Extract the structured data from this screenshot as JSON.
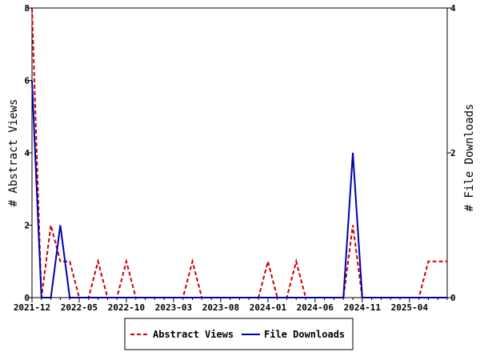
{
  "chart_data": {
    "type": "line",
    "x": [
      "2021-12",
      "2022-01",
      "2022-02",
      "2022-03",
      "2022-04",
      "2022-05",
      "2022-06",
      "2022-07",
      "2022-08",
      "2022-09",
      "2022-10",
      "2022-11",
      "2022-12",
      "2023-01",
      "2023-02",
      "2023-03",
      "2023-04",
      "2023-05",
      "2023-06",
      "2023-07",
      "2023-08",
      "2023-09",
      "2023-10",
      "2023-11",
      "2023-12",
      "2024-01",
      "2024-02",
      "2024-03",
      "2024-04",
      "2024-05",
      "2024-06",
      "2024-07",
      "2024-08",
      "2024-09",
      "2024-10",
      "2024-11",
      "2024-12",
      "2025-01",
      "2025-02",
      "2025-03",
      "2025-04",
      "2025-05",
      "2025-06",
      "2025-07",
      "2025-08"
    ],
    "x_tick_labels": [
      "2021-12",
      "2022-05",
      "2022-10",
      "2023-03",
      "2023-08",
      "2024-01",
      "2024-06",
      "2024-11",
      "2025-04"
    ],
    "series": [
      {
        "name": "Abstract Views",
        "axis": "left",
        "color": "#cc0000",
        "dash": true,
        "values": [
          8,
          0,
          2,
          1,
          1,
          0,
          0,
          1,
          0,
          0,
          1,
          0,
          0,
          0,
          0,
          0,
          0,
          1,
          0,
          0,
          0,
          0,
          0,
          0,
          0,
          1,
          0,
          0,
          1,
          0,
          0,
          0,
          0,
          0,
          2,
          0,
          0,
          0,
          0,
          0,
          0,
          0,
          1,
          1,
          1
        ]
      },
      {
        "name": "File Downloads",
        "axis": "right",
        "color": "#0000aa",
        "dash": false,
        "values": [
          3,
          0,
          0,
          1,
          0,
          0,
          0,
          0,
          0,
          0,
          0,
          0,
          0,
          0,
          0,
          0,
          0,
          0,
          0,
          0,
          0,
          0,
          0,
          0,
          0,
          0,
          0,
          0,
          0,
          0,
          0,
          0,
          0,
          0,
          2,
          0,
          0,
          0,
          0,
          0,
          0,
          0,
          0,
          0,
          0
        ]
      }
    ],
    "ylabel_left": "# Abstract Views",
    "ylabel_right": "# File Downloads",
    "ylim_left": [
      0,
      8
    ],
    "ylim_right": [
      0,
      4
    ],
    "yticks_left": [
      0,
      2,
      4,
      6,
      8
    ],
    "yticks_right": [
      0,
      2,
      4
    ],
    "grid": false,
    "legend_position": "bottom-center"
  }
}
